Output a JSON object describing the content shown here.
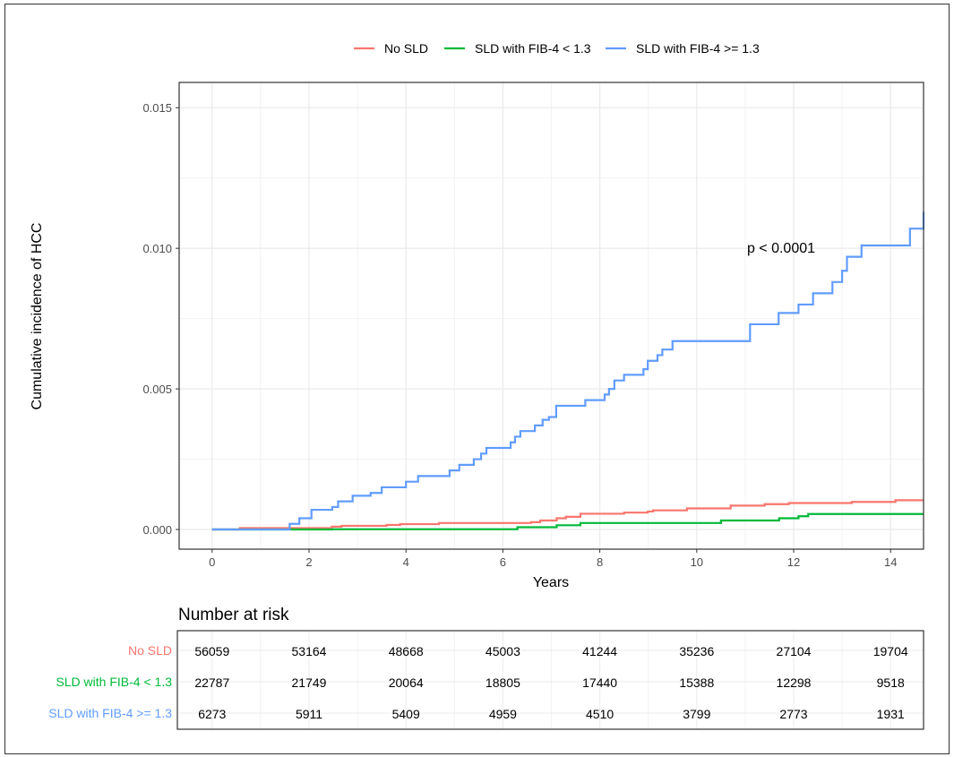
{
  "chart_data": {
    "type": "line",
    "step": true,
    "xlabel": "Years",
    "ylabel": "Cumulative incidence of HCC",
    "xlim": [
      -0.68,
      14.68
    ],
    "ylim": [
      -0.0007,
      0.0159
    ],
    "xticks": [
      0,
      2,
      4,
      6,
      8,
      10,
      12,
      14
    ],
    "yticks": [
      0.0,
      0.005,
      0.01,
      0.015
    ],
    "ytick_labels": [
      "0.000",
      "0.005",
      "0.010",
      "0.015"
    ],
    "grid": true,
    "legend_position": "top",
    "annotation": "p < 0.0001",
    "series": [
      {
        "name": "No SLD",
        "color": "#F8766D",
        "points": [
          [
            0,
            0
          ],
          [
            0.57,
            5e-05
          ],
          [
            2.47,
            0.0001
          ],
          [
            2.67,
            0.00013
          ],
          [
            3.6,
            0.00016
          ],
          [
            3.88,
            0.00019
          ],
          [
            4.68,
            0.00023
          ],
          [
            6.58,
            0.00026
          ],
          [
            6.77,
            0.00032
          ],
          [
            7.11,
            0.0004
          ],
          [
            7.3,
            0.00045
          ],
          [
            7.6,
            0.00056
          ],
          [
            8.5,
            0.0006
          ],
          [
            8.99,
            0.00064
          ],
          [
            9.1,
            0.00068
          ],
          [
            9.8,
            0.00075
          ],
          [
            10.7,
            0.00085
          ],
          [
            11.4,
            0.0009
          ],
          [
            11.9,
            0.00094
          ],
          [
            13.2,
            0.00098
          ],
          [
            14.1,
            0.00104
          ],
          [
            14.68,
            0.00104
          ]
        ]
      },
      {
        "name": "SLD with FIB-4 < 1.3",
        "color": "#00BA38",
        "points": [
          [
            0,
            0
          ],
          [
            2.48,
            1e-05
          ],
          [
            6.3,
            8e-05
          ],
          [
            7.11,
            0.00015
          ],
          [
            7.6,
            0.00023
          ],
          [
            10.5,
            0.00032
          ],
          [
            11.7,
            0.0004
          ],
          [
            12.1,
            0.00047
          ],
          [
            12.3,
            0.00055
          ],
          [
            14.68,
            0.00055
          ]
        ]
      },
      {
        "name": "SLD with FIB-4 >= 1.3",
        "color": "#619CFF",
        "points": [
          [
            0,
            0
          ],
          [
            1.6,
            0.0002
          ],
          [
            1.8,
            0.0004
          ],
          [
            2.05,
            0.0007
          ],
          [
            2.48,
            0.0008
          ],
          [
            2.6,
            0.001
          ],
          [
            2.9,
            0.0012
          ],
          [
            3.27,
            0.0013
          ],
          [
            3.5,
            0.0015
          ],
          [
            4.0,
            0.0017
          ],
          [
            4.25,
            0.0019
          ],
          [
            4.9,
            0.0021
          ],
          [
            5.1,
            0.0023
          ],
          [
            5.4,
            0.0025
          ],
          [
            5.55,
            0.0027
          ],
          [
            5.66,
            0.0029
          ],
          [
            6.16,
            0.0031
          ],
          [
            6.25,
            0.0033
          ],
          [
            6.36,
            0.0035
          ],
          [
            6.66,
            0.0037
          ],
          [
            6.82,
            0.0039
          ],
          [
            6.95,
            0.004
          ],
          [
            7.1,
            0.0044
          ],
          [
            7.7,
            0.0046
          ],
          [
            8.1,
            0.0048
          ],
          [
            8.19,
            0.005
          ],
          [
            8.3,
            0.0053
          ],
          [
            8.5,
            0.0055
          ],
          [
            8.9,
            0.0057
          ],
          [
            8.99,
            0.006
          ],
          [
            9.19,
            0.0062
          ],
          [
            9.29,
            0.0064
          ],
          [
            9.5,
            0.0067
          ],
          [
            11.1,
            0.0073
          ],
          [
            11.69,
            0.0077
          ],
          [
            12.1,
            0.008
          ],
          [
            12.4,
            0.0084
          ],
          [
            12.8,
            0.0088
          ],
          [
            13.0,
            0.0092
          ],
          [
            13.1,
            0.0097
          ],
          [
            13.4,
            0.0101
          ],
          [
            14.4,
            0.0107
          ],
          [
            14.68,
            0.0113
          ]
        ]
      }
    ],
    "risk_table": {
      "title": "Number at risk",
      "times": [
        0,
        2,
        4,
        6,
        8,
        10,
        12,
        14
      ],
      "rows": [
        {
          "label": "No SLD",
          "color": "#F8766D",
          "values": [
            "56059",
            "53164",
            "48668",
            "45003",
            "41244",
            "35236",
            "27104",
            "19704"
          ]
        },
        {
          "label": "SLD with FIB-4 < 1.3",
          "color": "#00BA38",
          "values": [
            "22787",
            "21749",
            "20064",
            "18805",
            "17440",
            "15388",
            "12298",
            "9518"
          ]
        },
        {
          "label": "SLD with FIB-4 >= 1.3",
          "color": "#619CFF",
          "values": [
            "6273",
            "5911",
            "5409",
            "4959",
            "4510",
            "3799",
            "2773",
            "1931"
          ]
        }
      ]
    }
  }
}
